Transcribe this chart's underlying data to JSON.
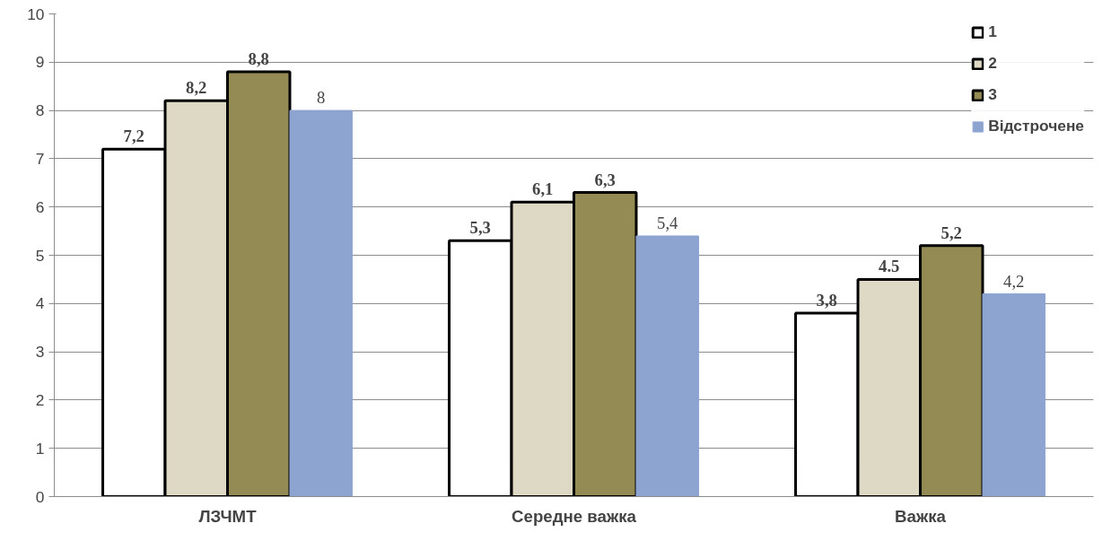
{
  "chart_data": {
    "type": "bar",
    "categories": [
      "ЛЗЧМТ",
      "Середне важка",
      "Важка"
    ],
    "series": [
      {
        "name": "1",
        "color": "#ffffff",
        "values": [
          7.2,
          5.3,
          3.8
        ],
        "value_labels": [
          "7,2",
          "5,3",
          "3,8"
        ]
      },
      {
        "name": "2",
        "color": "#ddd9c4",
        "values": [
          8.2,
          6.1,
          4.5
        ],
        "value_labels": [
          "8,2",
          "6,1",
          "4.5"
        ]
      },
      {
        "name": "3",
        "color": "#948a54",
        "values": [
          8.8,
          6.3,
          5.2
        ],
        "value_labels": [
          "8,8",
          "6,3",
          "5,2"
        ]
      },
      {
        "name": "Відстрочене",
        "color": "#8ea4d0",
        "values": [
          8,
          5.4,
          4.2
        ],
        "value_labels": [
          "8",
          "5,4",
          "4,2"
        ]
      }
    ],
    "ylim": [
      0,
      10
    ],
    "yticks": [
      0,
      1,
      2,
      3,
      4,
      5,
      6,
      7,
      8,
      9,
      10
    ],
    "grid": "y",
    "legend": "top right"
  }
}
